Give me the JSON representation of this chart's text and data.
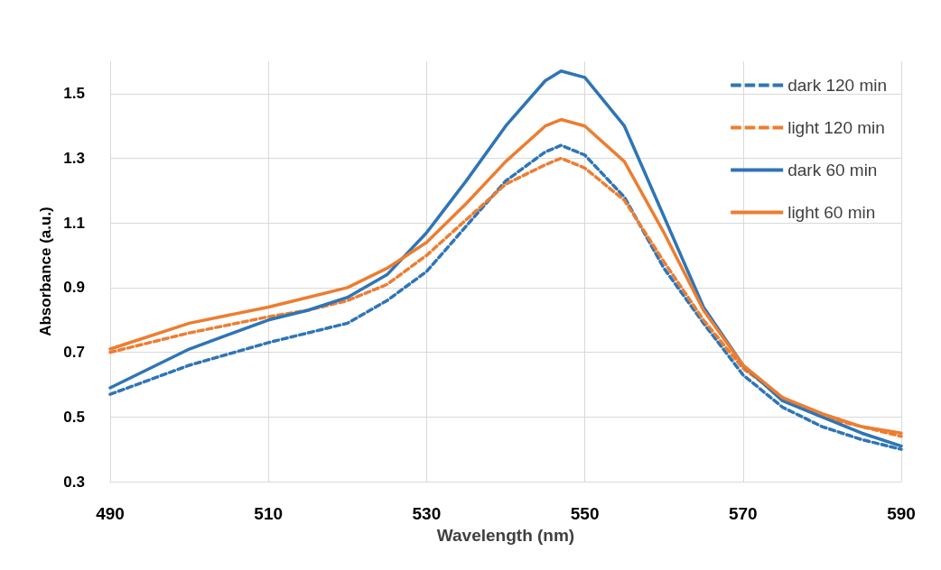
{
  "chart_data": {
    "type": "line",
    "xlabel": "Wavelength (nm)",
    "ylabel": "Absorbance (a.u.)",
    "x": [
      490,
      500,
      510,
      515,
      520,
      525,
      530,
      535,
      540,
      545,
      547,
      550,
      555,
      560,
      565,
      570,
      575,
      580,
      585,
      590
    ],
    "series": [
      {
        "name": "dark 120 min",
        "color": "#2e75b6",
        "line_style": "dashed",
        "values": [
          0.57,
          0.66,
          0.73,
          0.76,
          0.79,
          0.86,
          0.95,
          1.09,
          1.23,
          1.32,
          1.34,
          1.31,
          1.18,
          0.96,
          0.79,
          0.63,
          0.53,
          0.47,
          0.43,
          0.4
        ]
      },
      {
        "name": "light 120 min",
        "color": "#ed7d31",
        "line_style": "dashed",
        "values": [
          0.7,
          0.76,
          0.81,
          0.83,
          0.86,
          0.91,
          1.0,
          1.11,
          1.22,
          1.28,
          1.3,
          1.27,
          1.17,
          0.98,
          0.8,
          0.65,
          0.56,
          0.5,
          0.47,
          0.44
        ]
      },
      {
        "name": "dark 60 min",
        "color": "#2e75b6",
        "line_style": "solid",
        "values": [
          0.59,
          0.71,
          0.8,
          0.83,
          0.87,
          0.94,
          1.07,
          1.23,
          1.4,
          1.54,
          1.57,
          1.55,
          1.4,
          1.12,
          0.84,
          0.66,
          0.55,
          0.5,
          0.45,
          0.41
        ]
      },
      {
        "name": "light 60 min",
        "color": "#ed7d31",
        "line_style": "solid",
        "values": [
          0.71,
          0.79,
          0.84,
          0.87,
          0.9,
          0.96,
          1.04,
          1.16,
          1.29,
          1.4,
          1.42,
          1.4,
          1.29,
          1.07,
          0.83,
          0.66,
          0.56,
          0.51,
          0.47,
          0.45
        ]
      }
    ],
    "xlim": [
      490,
      590
    ],
    "xticks": [
      490,
      510,
      530,
      550,
      570,
      590
    ],
    "ylim": [
      0.3,
      1.6
    ],
    "yticks": [
      0.3,
      0.5,
      0.7,
      0.9,
      1.1,
      1.3,
      1.5
    ],
    "grid": true,
    "legend": "top right",
    "marker": "none"
  }
}
